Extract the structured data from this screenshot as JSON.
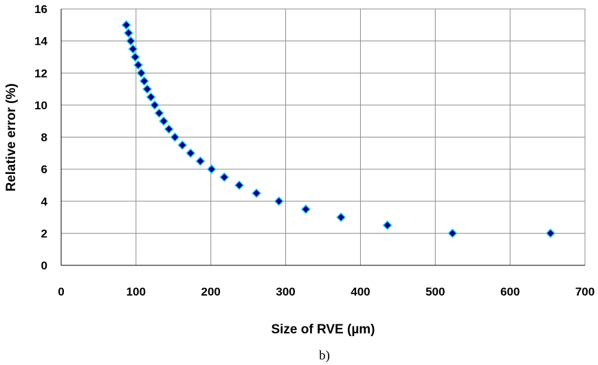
{
  "chart_data": {
    "type": "scatter",
    "title": "",
    "xlabel": "Size of RVE (µm)",
    "ylabel": "Relative error (%)",
    "caption": "b)",
    "xlim": [
      0,
      700
    ],
    "ylim": [
      0,
      16
    ],
    "xticks": [
      0,
      100,
      200,
      300,
      400,
      500,
      600,
      700
    ],
    "yticks": [
      0,
      2,
      4,
      6,
      8,
      10,
      12,
      14,
      16
    ],
    "grid": true,
    "marker": "diamond",
    "colors": {
      "marker_fill": "#000080",
      "marker_edge": "#33ccff"
    },
    "series": [
      {
        "x": [
          87,
          90,
          93,
          96,
          99,
          103,
          107,
          111,
          115,
          120,
          125,
          131,
          137,
          144,
          152,
          162,
          173,
          186,
          201,
          218,
          238,
          261,
          291,
          327,
          374,
          436,
          523,
          654
        ],
        "y": [
          15.0,
          14.5,
          14.0,
          13.5,
          13.0,
          12.5,
          12.0,
          11.5,
          11.0,
          10.5,
          10.0,
          9.5,
          9.0,
          8.5,
          8.0,
          7.5,
          7.0,
          6.5,
          6.0,
          5.5,
          5.0,
          4.5,
          4.0,
          3.5,
          3.0,
          2.5,
          2.0,
          2.0
        ]
      }
    ]
  }
}
